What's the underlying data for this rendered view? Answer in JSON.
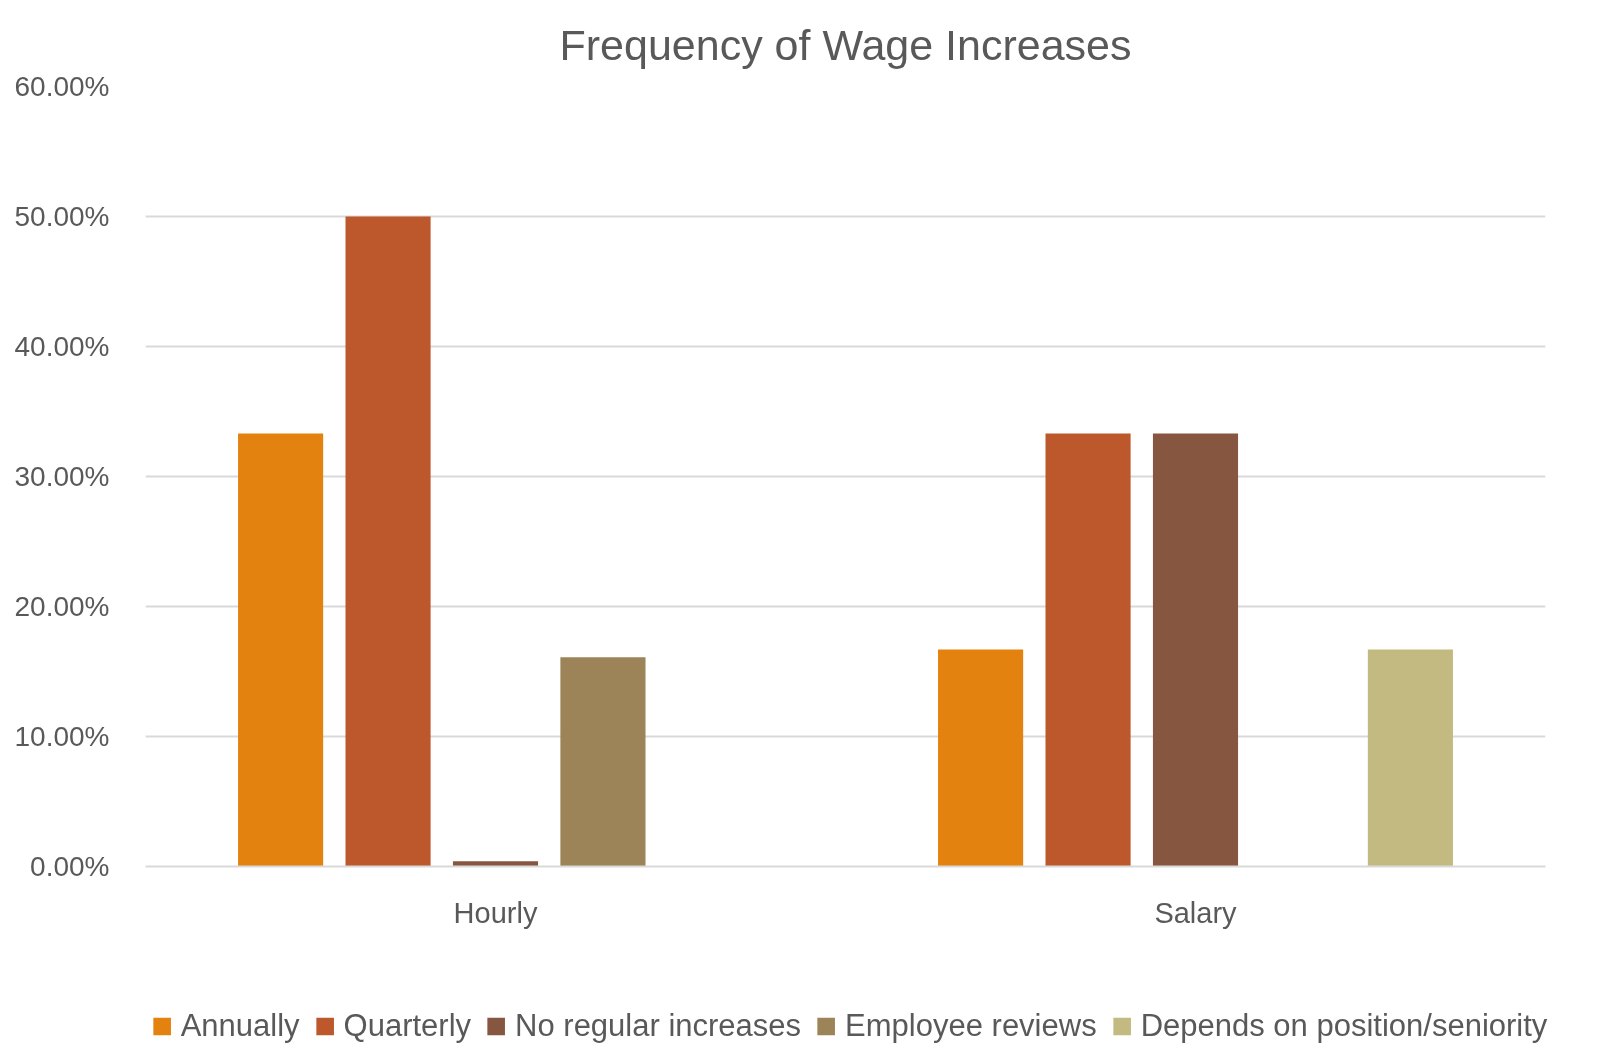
{
  "chart_data": {
    "type": "bar",
    "title": "Frequency of Wage Increases",
    "categories": [
      "Hourly",
      "Salary"
    ],
    "series": [
      {
        "name": "Annually",
        "color": "#e3820f",
        "values": [
          33.3,
          16.7
        ]
      },
      {
        "name": "Quarterly",
        "color": "#bc582b",
        "values": [
          50,
          33.3
        ]
      },
      {
        "name": "No regular increases",
        "color": "#875640",
        "values": [
          0.4,
          33.3
        ]
      },
      {
        "name": "Employee reviews",
        "color": "#9c8358",
        "values": [
          16.1,
          null
        ]
      },
      {
        "name": "Depends on position/seniority",
        "color": "#c2ba80",
        "values": [
          null,
          16.7
        ]
      }
    ],
    "ylim": [
      0,
      60
    ],
    "yticks": [
      {
        "value": 0,
        "label": "0.00%"
      },
      {
        "value": 10,
        "label": "10.00%"
      },
      {
        "value": 20,
        "label": "20.00%"
      },
      {
        "value": 30,
        "label": "30.00%"
      },
      {
        "value": 40,
        "label": "40.00%"
      },
      {
        "value": 50,
        "label": "50.00%"
      },
      {
        "value": 60,
        "label": "60.00%"
      }
    ],
    "grid": "y",
    "legend": "bottom"
  }
}
